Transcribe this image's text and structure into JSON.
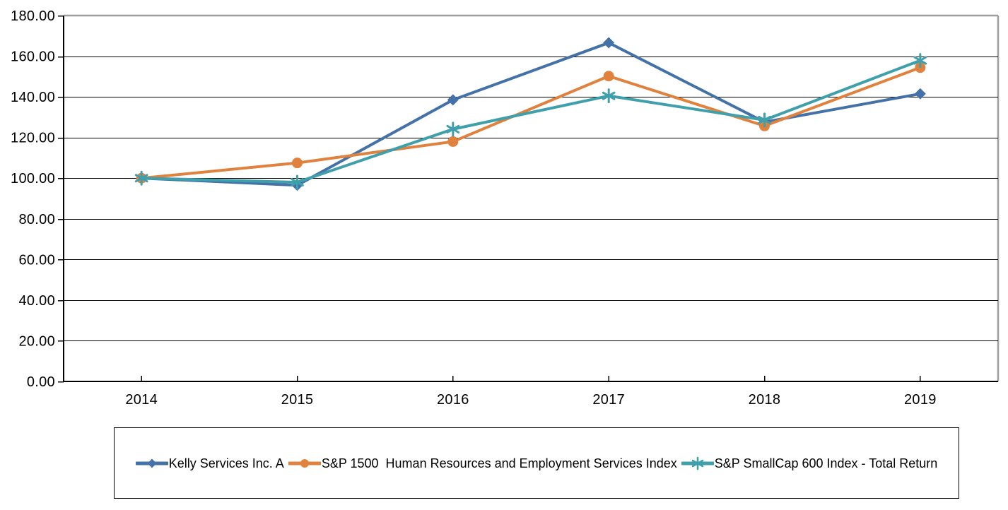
{
  "chart_data": {
    "type": "line",
    "title": "",
    "xlabel": "",
    "ylabel": "",
    "categories": [
      "2014",
      "2015",
      "2016",
      "2017",
      "2018",
      "2019"
    ],
    "series": [
      {
        "name": "Kelly Services Inc. A",
        "marker": "diamond",
        "color": "#4472A8",
        "values": [
          100.0,
          96.5,
          138.5,
          166.6,
          127.6,
          141.5
        ]
      },
      {
        "name": "S&P 1500  Human Resources and Employment Services Index",
        "marker": "circle",
        "color": "#E0823E",
        "values": [
          100.0,
          107.5,
          118.0,
          150.2,
          125.7,
          154.4
        ]
      },
      {
        "name": "S&P SmallCap 600 Index - Total Return",
        "marker": "asterisk",
        "color": "#3F9FAB",
        "values": [
          100.0,
          98.0,
          124.1,
          140.5,
          128.6,
          157.9
        ]
      }
    ],
    "ylim": [
      0,
      180
    ],
    "ytick_step": 20,
    "ytick_labels": [
      "0.00",
      "20.00",
      "40.00",
      "60.00",
      "80.00",
      "100.00",
      "120.00",
      "140.00",
      "160.00",
      "180.00"
    ],
    "grid": true,
    "legend_position": "bottom"
  },
  "colors": {
    "grid_line": "#000000",
    "axis_line": "#000000",
    "plot_border_gray": "#9E9E9E",
    "text": "#000000",
    "background": "#FFFFFF"
  }
}
